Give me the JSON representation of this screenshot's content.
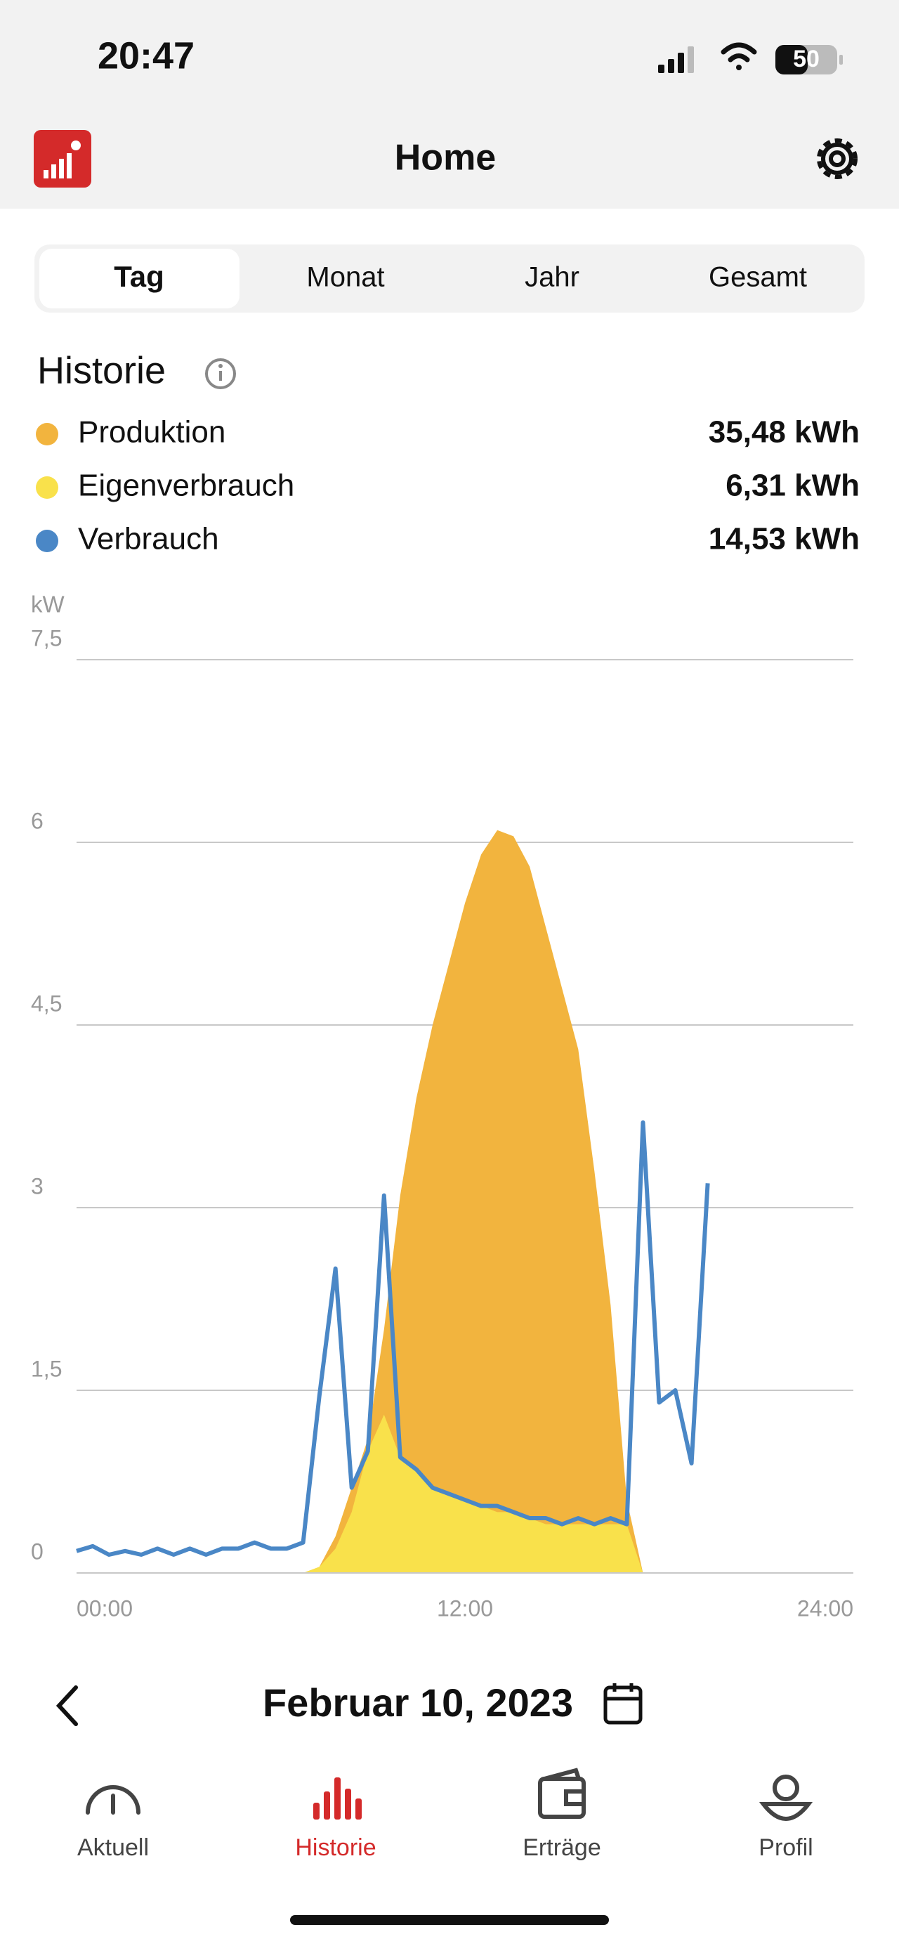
{
  "status_bar": {
    "time": "20:47",
    "battery": "50"
  },
  "header": {
    "title": "Home"
  },
  "tabs": [
    "Tag",
    "Monat",
    "Jahr",
    "Gesamt"
  ],
  "section": {
    "title": "Historie"
  },
  "chart_data": {
    "type": "area",
    "y_label": "kW",
    "x": [
      0,
      0.5,
      1,
      1.5,
      2,
      2.5,
      3,
      3.5,
      4,
      4.5,
      5,
      5.5,
      6,
      6.5,
      7,
      7.5,
      8,
      8.5,
      9,
      9.5,
      10,
      10.5,
      11,
      11.5,
      12,
      12.5,
      13,
      13.5,
      14,
      14.5,
      15,
      15.5,
      16,
      16.5,
      17,
      17.5,
      18,
      18.5,
      19,
      19.5,
      20,
      20.5,
      21,
      21.5,
      22,
      22.5,
      23,
      23.5,
      24
    ],
    "series": [
      {
        "name": "Produktion",
        "total": "35,48 kWh",
        "color": "#f2b43e",
        "kind": "area",
        "values": [
          0,
          0,
          0,
          0,
          0,
          0,
          0,
          0,
          0,
          0,
          0,
          0,
          0,
          0,
          0,
          0.05,
          0.3,
          0.7,
          1.1,
          2.0,
          3.1,
          3.9,
          4.5,
          5.0,
          5.5,
          5.9,
          6.1,
          6.05,
          5.8,
          5.3,
          4.8,
          4.3,
          3.3,
          2.2,
          0.6,
          0,
          0,
          0,
          0,
          0,
          null,
          null,
          null,
          null,
          null,
          null,
          null,
          null,
          null
        ]
      },
      {
        "name": "Eigenverbrauch",
        "total": "6,31 kWh",
        "color": "#f9e14b",
        "kind": "area",
        "values": [
          0,
          0,
          0,
          0,
          0,
          0,
          0,
          0,
          0,
          0,
          0,
          0,
          0,
          0,
          0,
          0.05,
          0.2,
          0.5,
          1.0,
          1.3,
          0.95,
          0.85,
          0.7,
          0.65,
          0.6,
          0.55,
          0.5,
          0.5,
          0.45,
          0.4,
          0.4,
          0.4,
          0.4,
          0.4,
          0.4,
          0,
          0,
          0,
          0,
          0,
          null,
          null,
          null,
          null,
          null,
          null,
          null,
          null,
          null
        ]
      },
      {
        "name": "Verbrauch",
        "total": "14,53 kWh",
        "color": "#4a87c6",
        "kind": "line",
        "values": [
          0.18,
          0.22,
          0.15,
          0.18,
          0.15,
          0.2,
          0.15,
          0.2,
          0.15,
          0.2,
          0.2,
          0.25,
          0.2,
          0.2,
          0.25,
          1.45,
          2.5,
          0.7,
          1.0,
          3.1,
          0.95,
          0.85,
          0.7,
          0.65,
          0.6,
          0.55,
          0.55,
          0.5,
          0.45,
          0.45,
          0.4,
          0.45,
          0.4,
          0.45,
          0.4,
          3.7,
          1.4,
          1.5,
          0.9,
          3.2,
          null,
          null,
          null,
          null,
          null,
          null,
          null,
          null,
          null
        ]
      }
    ],
    "xlim": [
      0,
      24
    ],
    "xticks": [
      {
        "value": 0,
        "label": "00:00"
      },
      {
        "value": 12,
        "label": "12:00"
      },
      {
        "value": 24,
        "label": "24:00"
      }
    ],
    "ylim": [
      0,
      7.5
    ],
    "yticks": [
      0,
      {
        "value": 1.5,
        "label": "1,5"
      },
      3,
      {
        "value": 4.5,
        "label": "4,5"
      },
      6,
      {
        "value": 7.5,
        "label": "7,5"
      }
    ],
    "grid": true
  },
  "date": "Februar 10, 2023",
  "nav": [
    "Aktuell",
    "Historie",
    "Erträge",
    "Profil"
  ]
}
